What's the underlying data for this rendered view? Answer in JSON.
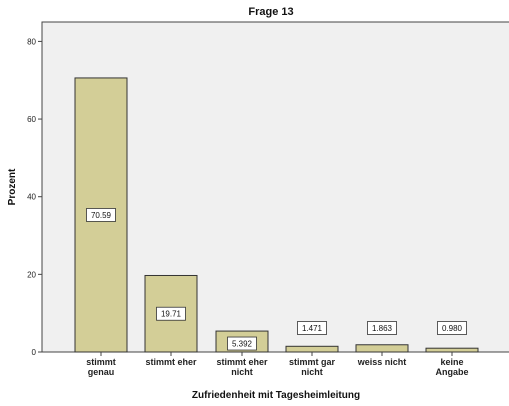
{
  "chart_data": {
    "type": "bar",
    "title": "Frage 13",
    "xlabel": "Zufriedenheit mit Tagesheimleitung",
    "ylabel": "Prozent",
    "ylim": [
      0,
      85
    ],
    "yticks": [
      0,
      20,
      40,
      60,
      80
    ],
    "grid": false,
    "categories": [
      [
        "stimmt",
        "genau"
      ],
      [
        "stimmt eher"
      ],
      [
        "stimmt eher",
        "nicht"
      ],
      [
        "stimmt gar",
        "nicht"
      ],
      [
        "weiss nicht"
      ],
      [
        "keine",
        "Angabe"
      ]
    ],
    "values": [
      70.59,
      19.71,
      5.392,
      1.471,
      1.863,
      0.98
    ],
    "data_labels": [
      "70.59",
      "19.71",
      "5.392",
      "1.471",
      "1.863",
      "0.980"
    ],
    "colors": {
      "plot_bg": "#f0f0f0",
      "bar_fill": "#d3ce97",
      "bar_stroke": "#333333",
      "frame": "#444444"
    }
  }
}
